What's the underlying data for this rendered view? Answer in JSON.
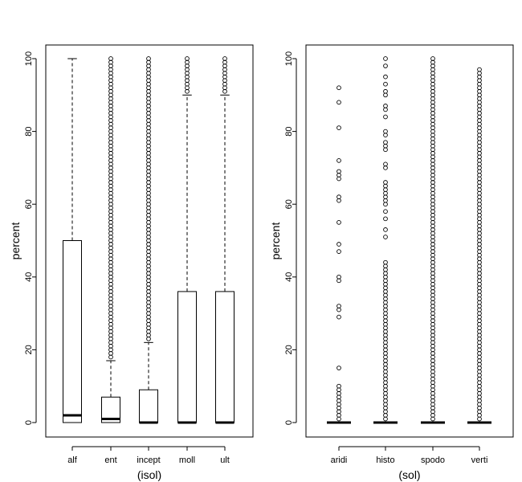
{
  "chart_data": [
    {
      "type": "boxplot",
      "xlabel": "(isol)",
      "ylabel": "percent",
      "ylim": [
        0,
        100
      ],
      "yticks": [
        0,
        20,
        40,
        60,
        80,
        100
      ],
      "grid": false,
      "categories": [
        "alf",
        "ent",
        "incept",
        "moll",
        "ult"
      ],
      "boxes": [
        {
          "name": "alf",
          "whisker_low": 0,
          "q1": 0,
          "median": 2,
          "q3": 50,
          "whisker_high": 100,
          "outliers": []
        },
        {
          "name": "ent",
          "whisker_low": 0,
          "q1": 0,
          "median": 1,
          "q3": 7,
          "whisker_high": 17,
          "outliers_range": [
            18,
            100
          ]
        },
        {
          "name": "incept",
          "whisker_low": 0,
          "q1": 0,
          "median": 0,
          "q3": 9,
          "whisker_high": 22,
          "outliers_range": [
            23,
            100
          ]
        },
        {
          "name": "moll",
          "whisker_low": 0,
          "q1": 0,
          "median": 0,
          "q3": 36,
          "whisker_high": 90,
          "outliers_range": [
            91,
            100
          ]
        },
        {
          "name": "ult",
          "whisker_low": 0,
          "q1": 0,
          "median": 0,
          "q3": 36,
          "whisker_high": 90,
          "outliers_range": [
            91,
            100
          ]
        }
      ]
    },
    {
      "type": "boxplot",
      "xlabel": "(sol)",
      "ylabel": "percent",
      "ylim": [
        0,
        100
      ],
      "yticks": [
        0,
        20,
        40,
        60,
        80,
        100
      ],
      "grid": false,
      "categories": [
        "aridi",
        "histo",
        "spodo",
        "verti"
      ],
      "boxes": [
        {
          "name": "aridi",
          "whisker_low": 0,
          "q1": 0,
          "median": 0,
          "q3": 0,
          "whisker_high": 0,
          "outliers": [
            1,
            2,
            3,
            4,
            5,
            6,
            7,
            8,
            9,
            10,
            15,
            29,
            31,
            32,
            39,
            40,
            47,
            49,
            55,
            61,
            62,
            67,
            68,
            69,
            72,
            81,
            88,
            92
          ]
        },
        {
          "name": "histo",
          "whisker_low": 0,
          "q1": 0,
          "median": 0,
          "q3": 0,
          "whisker_high": 0,
          "outliers_range": [
            1,
            44
          ],
          "outliers": [
            51,
            53,
            56,
            58,
            60,
            61,
            62,
            63,
            64,
            65,
            66,
            70,
            71,
            75,
            76,
            77,
            79,
            80,
            84,
            86,
            87,
            90,
            91,
            93,
            95,
            98,
            100
          ]
        },
        {
          "name": "spodo",
          "whisker_low": 0,
          "q1": 0,
          "median": 0,
          "q3": 0,
          "whisker_high": 0,
          "outliers_range": [
            1,
            100
          ]
        },
        {
          "name": "verti",
          "whisker_low": 0,
          "q1": 0,
          "median": 0,
          "q3": 0,
          "whisker_high": 0,
          "outliers_range": [
            1,
            97
          ]
        }
      ]
    }
  ]
}
